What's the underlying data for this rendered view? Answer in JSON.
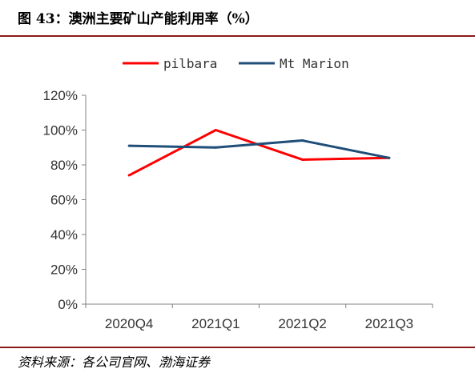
{
  "header": {
    "title": "图 43：澳洲主要矿山产能利用率（%）"
  },
  "footer": {
    "source": "资料来源：各公司官网、渤海证券"
  },
  "chart_data": {
    "type": "line",
    "categories": [
      "2020Q4",
      "2021Q1",
      "2021Q2",
      "2021Q3"
    ],
    "series": [
      {
        "name": "pilbara",
        "color": "#ff0000",
        "values": [
          0.74,
          1.0,
          0.83,
          0.84
        ]
      },
      {
        "name": "Mt Marion",
        "color": "#1f4e79",
        "values": [
          0.91,
          0.9,
          0.94,
          0.84
        ]
      }
    ],
    "y_ticks": [
      "0%",
      "20%",
      "40%",
      "60%",
      "80%",
      "100%",
      "120%"
    ],
    "ylim": [
      0,
      1.2
    ],
    "legend_position": "top",
    "grid": false
  }
}
